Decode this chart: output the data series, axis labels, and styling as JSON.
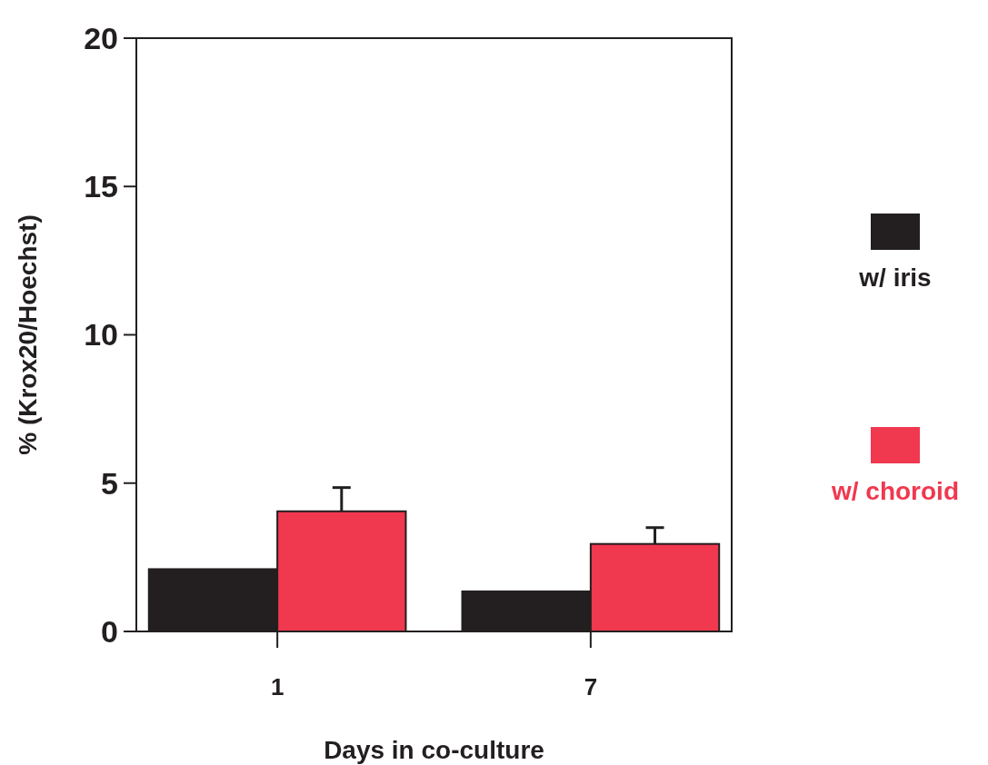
{
  "chart_data": {
    "type": "bar",
    "xlabel": "Days in co-culture",
    "ylabel": "% (Krox20/Hoechst)",
    "categories": [
      "1",
      "7"
    ],
    "series": [
      {
        "name": "w/ iris",
        "color": "#231f20",
        "values": [
          2.1,
          1.35
        ]
      },
      {
        "name": "w/ choroid",
        "color": "#f0384f",
        "values": [
          4.05,
          2.95
        ],
        "errors": [
          [
            4.05,
            4.85
          ],
          [
            2.95,
            3.5
          ]
        ]
      }
    ],
    "ylim": [
      0,
      20
    ],
    "yticks": [
      0,
      5,
      10,
      15,
      20
    ],
    "grid": false,
    "legend": "right"
  }
}
